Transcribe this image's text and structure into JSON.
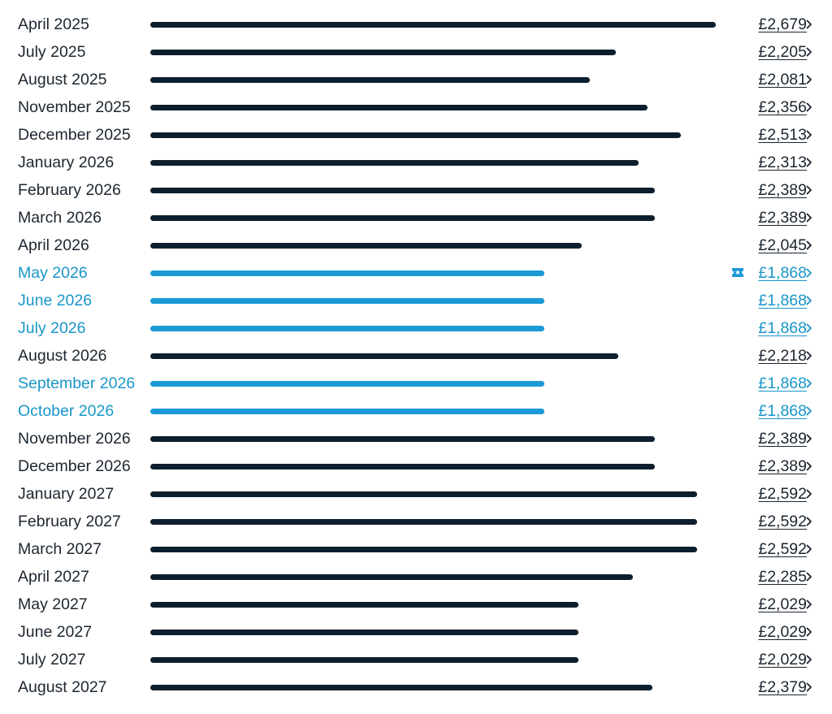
{
  "colors": {
    "default_text": "#1c2630",
    "default_bar": "#0d1f2d",
    "cheap_text": "#1996c9",
    "cheap_bar": "#1c9ad6"
  },
  "max_price": 2679,
  "rows": [
    {
      "month": "April 2025",
      "price": "£2,679",
      "value": 2679,
      "cheap": false
    },
    {
      "month": "July 2025",
      "price": "£2,205",
      "value": 2205,
      "cheap": false
    },
    {
      "month": "August 2025",
      "price": "£2,081",
      "value": 2081,
      "cheap": false
    },
    {
      "month": "November 2025",
      "price": "£2,356",
      "value": 2356,
      "cheap": false
    },
    {
      "month": "December 2025",
      "price": "£2,513",
      "value": 2513,
      "cheap": false
    },
    {
      "month": "January 2026",
      "price": "£2,313",
      "value": 2313,
      "cheap": false
    },
    {
      "month": "February 2026",
      "price": "£2,389",
      "value": 2389,
      "cheap": false
    },
    {
      "month": "March 2026",
      "price": "£2,389",
      "value": 2389,
      "cheap": false
    },
    {
      "month": "April 2026",
      "price": "£2,045",
      "value": 2045,
      "cheap": false
    },
    {
      "month": "May 2026",
      "price": "£1,868",
      "value": 1868,
      "cheap": true,
      "icon": "ticket-icon"
    },
    {
      "month": "June 2026",
      "price": "£1,868",
      "value": 1868,
      "cheap": true
    },
    {
      "month": "July 2026",
      "price": "£1,868",
      "value": 1868,
      "cheap": true
    },
    {
      "month": "August 2026",
      "price": "£2,218",
      "value": 2218,
      "cheap": false
    },
    {
      "month": "September 2026",
      "price": "£1,868",
      "value": 1868,
      "cheap": true
    },
    {
      "month": "October 2026",
      "price": "£1,868",
      "value": 1868,
      "cheap": true
    },
    {
      "month": "November 2026",
      "price": "£2,389",
      "value": 2389,
      "cheap": false
    },
    {
      "month": "December 2026",
      "price": "£2,389",
      "value": 2389,
      "cheap": false
    },
    {
      "month": "January 2027",
      "price": "£2,592",
      "value": 2592,
      "cheap": false
    },
    {
      "month": "February 2027",
      "price": "£2,592",
      "value": 2592,
      "cheap": false
    },
    {
      "month": "March 2027",
      "price": "£2,592",
      "value": 2592,
      "cheap": false
    },
    {
      "month": "April 2027",
      "price": "£2,285",
      "value": 2285,
      "cheap": false
    },
    {
      "month": "May 2027",
      "price": "£2,029",
      "value": 2029,
      "cheap": false
    },
    {
      "month": "June 2027",
      "price": "£2,029",
      "value": 2029,
      "cheap": false
    },
    {
      "month": "July 2027",
      "price": "£2,029",
      "value": 2029,
      "cheap": false
    },
    {
      "month": "August 2027",
      "price": "£2,379",
      "value": 2379,
      "cheap": false
    }
  ]
}
